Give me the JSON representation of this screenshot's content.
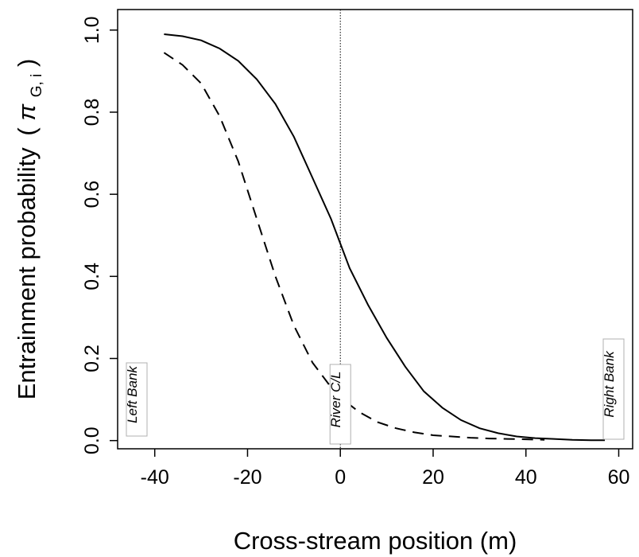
{
  "chart_data": {
    "type": "line",
    "xlabel": "Cross-stream position (m)",
    "ylabel_text": "Entrainment probability",
    "ylabel_symbol": "π",
    "ylabel_subscript": "G, i",
    "xlim": [
      -48,
      63
    ],
    "ylim": [
      -0.02,
      1.05
    ],
    "x_ticks": [
      -40,
      -20,
      0,
      20,
      40,
      60
    ],
    "y_ticks": [
      0.0,
      0.2,
      0.4,
      0.6,
      0.8,
      1.0
    ],
    "y_tick_labels": [
      "0.0",
      "0.2",
      "0.4",
      "0.6",
      "0.8",
      "1.0"
    ],
    "grid": false,
    "centerline_x": 0,
    "series": [
      {
        "style": "solid",
        "x": [
          -38,
          -34,
          -30,
          -26,
          -22,
          -18,
          -14,
          -10,
          -6,
          -2,
          0,
          2,
          6,
          10,
          14,
          18,
          22,
          26,
          30,
          34,
          38,
          42,
          46,
          50,
          54,
          57
        ],
        "y": [
          0.99,
          0.985,
          0.975,
          0.955,
          0.925,
          0.88,
          0.82,
          0.74,
          0.64,
          0.54,
          0.48,
          0.42,
          0.33,
          0.25,
          0.18,
          0.12,
          0.08,
          0.05,
          0.03,
          0.018,
          0.01,
          0.006,
          0.004,
          0.002,
          0.001,
          0.001
        ]
      },
      {
        "style": "dashed",
        "x": [
          -38,
          -34,
          -30,
          -26,
          -22,
          -18,
          -14,
          -10,
          -6,
          -2,
          0,
          4,
          8,
          12,
          16,
          20,
          24,
          28,
          32,
          36,
          40,
          44
        ],
        "y": [
          0.945,
          0.915,
          0.87,
          0.79,
          0.68,
          0.54,
          0.4,
          0.28,
          0.19,
          0.13,
          0.105,
          0.07,
          0.045,
          0.03,
          0.02,
          0.013,
          0.01,
          0.007,
          0.005,
          0.004,
          0.003,
          0.002
        ]
      }
    ],
    "annotations": [
      {
        "text": "Left Bank",
        "position": "bottom-left"
      },
      {
        "text": "River C/L",
        "position": "bottom-center"
      },
      {
        "text": "Right Bank",
        "position": "bottom-right"
      }
    ]
  }
}
